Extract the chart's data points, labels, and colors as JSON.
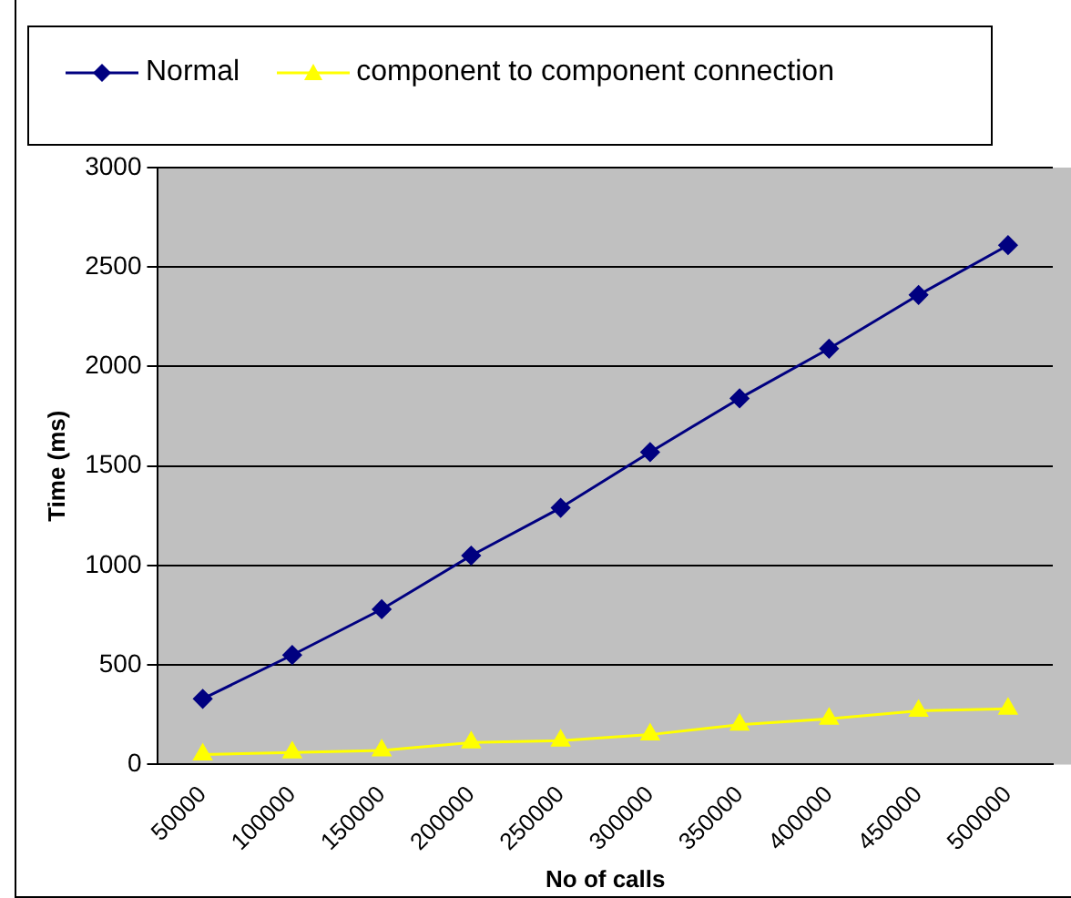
{
  "chart_data": {
    "type": "line",
    "xlabel": "No of calls",
    "ylabel": "Time (ms)",
    "categories": [
      "50000",
      "100000",
      "150000",
      "200000",
      "250000",
      "300000",
      "350000",
      "400000",
      "450000",
      "500000"
    ],
    "series": [
      {
        "name": "Normal",
        "color": "#000080",
        "marker": "diamond",
        "values": [
          330,
          550,
          780,
          1050,
          1290,
          1570,
          1840,
          2090,
          2360,
          2610
        ]
      },
      {
        "name": "component to component connection",
        "color": "#ffff00",
        "marker": "triangle",
        "values": [
          50,
          60,
          70,
          110,
          120,
          150,
          200,
          230,
          270,
          280
        ]
      }
    ],
    "ylim": [
      0,
      3000
    ],
    "yticks": [
      0,
      500,
      1000,
      1500,
      2000,
      2500,
      3000
    ],
    "grid": "y",
    "legend": "top",
    "line_style": "solid"
  }
}
